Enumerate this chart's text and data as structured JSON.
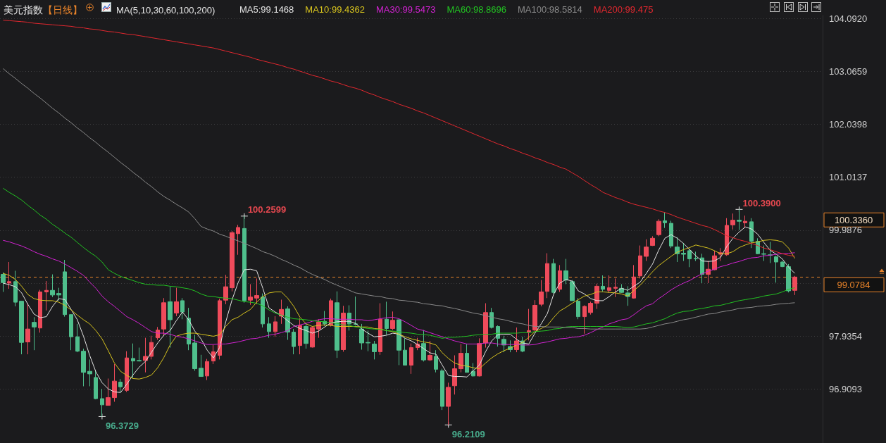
{
  "chart_data": {
    "type": "candlestick",
    "title": "美元指数【日线】",
    "subtitle": "MA(5,10,30,60,100,200)",
    "categories": [
      null,
      null,
      null,
      null,
      null,
      null,
      null,
      null,
      null,
      null,
      null,
      null,
      null,
      null,
      null,
      null,
      null,
      null,
      null,
      null,
      null,
      null,
      null,
      null,
      null,
      null,
      null,
      null,
      null,
      null,
      null,
      null,
      null,
      null,
      null,
      null,
      null,
      null,
      null,
      null,
      null,
      null,
      null,
      null,
      null,
      null,
      null,
      null,
      null,
      null,
      null,
      null,
      null,
      null,
      null,
      null,
      null,
      null,
      null,
      null,
      null,
      null,
      null,
      null,
      null,
      null,
      null,
      null,
      null,
      null,
      null,
      null,
      null,
      null,
      null,
      null,
      null,
      null,
      null,
      null,
      null,
      null,
      null,
      null,
      null,
      null,
      null,
      null,
      null,
      null,
      null,
      null,
      null,
      null,
      null,
      null,
      null,
      null,
      null,
      null,
      null,
      null,
      null,
      null,
      null,
      null,
      null,
      null,
      null,
      null,
      null,
      null,
      null,
      null,
      null,
      null,
      null,
      null,
      null,
      null,
      null,
      null,
      null,
      null,
      null,
      null,
      null,
      null,
      null
    ],
    "ohlc": [
      [
        99.13,
        99.17,
        98.79,
        98.97
      ],
      [
        98.96,
        99.37,
        98.85,
        98.99
      ],
      [
        98.99,
        99.2,
        98.51,
        98.59
      ],
      [
        98.61,
        98.61,
        97.58,
        97.81
      ],
      [
        97.82,
        98.57,
        97.58,
        98.07
      ],
      [
        98.2,
        98.3,
        97.66,
        98.11
      ],
      [
        98.09,
        98.83,
        98.0,
        98.79
      ],
      [
        98.79,
        99.0,
        98.43,
        98.82
      ],
      [
        98.82,
        99.13,
        98.69,
        98.73
      ],
      [
        98.76,
        98.87,
        98.62,
        98.73
      ],
      [
        99.18,
        99.41,
        98.31,
        98.35
      ],
      [
        98.35,
        98.35,
        97.66,
        97.92
      ],
      [
        97.92,
        98.17,
        97.62,
        97.64
      ],
      [
        97.64,
        97.69,
        96.96,
        97.23
      ],
      [
        97.25,
        97.48,
        96.96,
        97.2
      ],
      [
        97.13,
        97.28,
        96.71,
        96.72
      ],
      [
        96.72,
        96.91,
        96.3729,
        96.6
      ],
      [
        96.59,
        97.11,
        96.59,
        96.74
      ],
      [
        96.74,
        97.39,
        96.66,
        97.06
      ],
      [
        97.04,
        97.1,
        96.84,
        96.95
      ],
      [
        96.88,
        97.64,
        96.85,
        97.51
      ],
      [
        97.5,
        97.79,
        97.12,
        97.45
      ],
      [
        97.46,
        97.71,
        97.44,
        97.45
      ],
      [
        97.46,
        97.9,
        97.23,
        97.54
      ],
      [
        97.54,
        97.94,
        97.48,
        97.81
      ],
      [
        97.9,
        98.11,
        97.86,
        98.05
      ],
      [
        98.07,
        98.67,
        97.94,
        98.58
      ],
      [
        98.6,
        98.89,
        97.71,
        98.25
      ],
      [
        98.38,
        98.87,
        98.32,
        98.6
      ],
      [
        98.62,
        98.67,
        98.26,
        98.4
      ],
      [
        98.28,
        98.48,
        97.66,
        97.78
      ],
      [
        97.8,
        97.96,
        97.26,
        97.3
      ],
      [
        97.31,
        97.57,
        97.15,
        97.15
      ],
      [
        97.16,
        97.49,
        97.08,
        97.44
      ],
      [
        97.45,
        97.76,
        97.39,
        97.63
      ],
      [
        97.56,
        98.66,
        97.48,
        98.62
      ],
      [
        98.63,
        99.12,
        98.55,
        98.89
      ],
      [
        98.87,
        99.97,
        98.8,
        99.94
      ],
      [
        99.92,
        100.09,
        99.51,
        100.04
      ],
      [
        100.02,
        100.2599,
        98.58,
        98.62
      ],
      [
        98.63,
        98.94,
        98.54,
        98.69
      ],
      [
        98.67,
        99.05,
        98.55,
        98.72
      ],
      [
        98.69,
        98.76,
        98.1,
        98.17
      ],
      [
        98.17,
        98.3,
        97.9,
        98.02
      ],
      [
        98.02,
        98.32,
        97.92,
        98.21
      ],
      [
        98.32,
        98.64,
        98.17,
        98.45
      ],
      [
        98.46,
        98.51,
        97.86,
        98.01
      ],
      [
        98.01,
        98.07,
        97.58,
        97.73
      ],
      [
        97.75,
        98.28,
        97.58,
        98.14
      ],
      [
        98.12,
        98.17,
        97.69,
        97.79
      ],
      [
        97.72,
        98.12,
        97.71,
        98.1
      ],
      [
        98.07,
        98.26,
        97.9,
        98.21
      ],
      [
        98.22,
        98.42,
        98.13,
        98.17
      ],
      [
        98.15,
        98.66,
        98.12,
        98.62
      ],
      [
        98.58,
        98.8,
        97.51,
        97.66
      ],
      [
        97.67,
        98.52,
        97.63,
        98.38
      ],
      [
        98.38,
        98.53,
        98.04,
        98.17
      ],
      [
        98.17,
        98.7,
        98.14,
        98.16
      ],
      [
        98.07,
        98.17,
        97.67,
        97.8
      ],
      [
        97.81,
        98.04,
        97.64,
        97.8
      ],
      [
        97.78,
        97.84,
        97.48,
        97.63
      ],
      [
        97.63,
        98.57,
        97.57,
        98.26
      ],
      [
        98.26,
        98.6,
        97.96,
        98.08
      ],
      [
        98.08,
        98.41,
        98.05,
        98.24
      ],
      [
        98.25,
        98.27,
        97.37,
        97.66
      ],
      [
        97.66,
        97.89,
        97.37,
        97.37
      ],
      [
        97.37,
        97.79,
        97.2,
        97.71
      ],
      [
        97.71,
        97.9,
        97.66,
        97.78
      ],
      [
        97.79,
        98.05,
        97.44,
        97.47
      ],
      [
        97.47,
        97.84,
        97.45,
        97.56
      ],
      [
        97.54,
        97.66,
        97.23,
        97.29
      ],
      [
        97.26,
        97.3,
        96.5,
        96.57
      ],
      [
        96.57,
        97.03,
        96.2109,
        96.94
      ],
      [
        96.97,
        97.56,
        96.8,
        97.3
      ],
      [
        97.3,
        97.78,
        97.23,
        97.6
      ],
      [
        97.6,
        97.78,
        97.23,
        97.23
      ],
      [
        97.25,
        97.41,
        97.15,
        97.16
      ],
      [
        97.16,
        97.89,
        97.15,
        97.79
      ],
      [
        97.8,
        98.57,
        97.71,
        98.39
      ],
      [
        98.39,
        98.48,
        98.08,
        98.1
      ],
      [
        98.12,
        98.14,
        97.73,
        97.89
      ],
      [
        97.87,
        97.94,
        97.62,
        97.76
      ],
      [
        97.73,
        97.85,
        97.62,
        97.67
      ],
      [
        97.67,
        98.1,
        97.62,
        97.84
      ],
      [
        97.84,
        97.92,
        97.62,
        97.64
      ],
      [
        98.01,
        98.46,
        97.85,
        98.04
      ],
      [
        98.05,
        98.63,
        98.03,
        98.53
      ],
      [
        98.55,
        99.02,
        98.51,
        98.79
      ],
      [
        98.8,
        99.54,
        98.67,
        99.34
      ],
      [
        99.34,
        99.43,
        98.76,
        98.78
      ],
      [
        98.84,
        99.31,
        98.79,
        99.2
      ],
      [
        99.2,
        99.43,
        98.94,
        99.02
      ],
      [
        98.99,
        99.02,
        98.62,
        98.62
      ],
      [
        98.61,
        98.67,
        98.26,
        98.31
      ],
      [
        98.31,
        98.53,
        97.98,
        98.51
      ],
      [
        98.39,
        98.6,
        98.35,
        98.57
      ],
      [
        98.57,
        98.95,
        98.46,
        98.9
      ],
      [
        98.9,
        99.11,
        98.8,
        98.84
      ],
      [
        98.82,
        99.11,
        98.77,
        98.87
      ],
      [
        98.86,
        99.05,
        98.69,
        98.88
      ],
      [
        98.86,
        98.94,
        98.77,
        98.78
      ],
      [
        98.77,
        98.9,
        98.52,
        98.7
      ],
      [
        98.67,
        99.31,
        98.66,
        99.08
      ],
      [
        99.1,
        99.69,
        99.05,
        99.49
      ],
      [
        99.48,
        99.81,
        99.39,
        99.66
      ],
      [
        99.69,
        99.87,
        99.68,
        99.83
      ],
      [
        99.9,
        100.2,
        99.87,
        100.16
      ],
      [
        100.17,
        100.34,
        100.03,
        100.13
      ],
      [
        100.12,
        100.17,
        99.64,
        99.68
      ],
      [
        99.66,
        99.85,
        99.37,
        99.53
      ],
      [
        99.54,
        99.74,
        99.39,
        99.52
      ],
      [
        99.59,
        99.62,
        99.27,
        99.43
      ],
      [
        99.44,
        99.57,
        99.39,
        99.43
      ],
      [
        99.45,
        99.53,
        98.96,
        99.13
      ],
      [
        99.13,
        99.39,
        98.96,
        99.23
      ],
      [
        99.22,
        99.59,
        99.21,
        99.49
      ],
      [
        99.52,
        99.64,
        99.39,
        99.55
      ],
      [
        99.51,
        100.22,
        99.49,
        100.08
      ],
      [
        100.09,
        100.31,
        100.0,
        100.18
      ],
      [
        100.18,
        100.39,
        99.99,
        100.16
      ],
      [
        100.13,
        100.27,
        100.03,
        100.16
      ],
      [
        100.15,
        100.22,
        99.64,
        99.77
      ],
      [
        99.77,
        99.83,
        99.52,
        99.53
      ],
      [
        99.53,
        99.69,
        99.39,
        99.52
      ],
      [
        99.51,
        99.76,
        99.35,
        99.5
      ],
      [
        99.47,
        99.49,
        98.97,
        99.37
      ],
      [
        99.37,
        99.39,
        99.27,
        99.28
      ],
      [
        99.28,
        99.33,
        98.78,
        98.81
      ],
      [
        98.82,
        99.1,
        98.73,
        99.0784
      ]
    ],
    "colors": [
      "#4fbf8c",
      "#ef4b5b",
      "#4fbf8c",
      "#4fbf8c",
      "#ef4b5b",
      "#4fbf8c",
      "#ef4b5b",
      "#ef4b5b",
      "#4fbf8c",
      "#4fbf8c",
      "#4fbf8c",
      "#4fbf8c",
      "#4fbf8c",
      "#4fbf8c",
      "#4fbf8c",
      "#4fbf8c",
      "#4fbf8c",
      "#ef4b5b",
      "#ef4b5b",
      "#4fbf8c",
      "#ef4b5b",
      "#4fbf8c",
      "#4fbf8c",
      "#ef4b5b",
      "#ef4b5b",
      "#ef4b5b",
      "#ef4b5b",
      "#4fbf8c",
      "#ef4b5b",
      "#4fbf8c",
      "#4fbf8c",
      "#4fbf8c",
      "#4fbf8c",
      "#ef4b5b",
      "#ef4b5b",
      "#ef4b5b",
      "#ef4b5b",
      "#ef4b5b",
      "#ef4b5b",
      "#4fbf8c",
      "#ef4b5b",
      "#ef4b5b",
      "#4fbf8c",
      "#4fbf8c",
      "#ef4b5b",
      "#ef4b5b",
      "#4fbf8c",
      "#4fbf8c",
      "#ef4b5b",
      "#4fbf8c",
      "#ef4b5b",
      "#ef4b5b",
      "#4fbf8c",
      "#ef4b5b",
      "#4fbf8c",
      "#ef4b5b",
      "#4fbf8c",
      "#4fbf8c",
      "#4fbf8c",
      "#4fbf8c",
      "#4fbf8c",
      "#ef4b5b",
      "#4fbf8c",
      "#ef4b5b",
      "#4fbf8c",
      "#4fbf8c",
      "#ef4b5b",
      "#ef4b5b",
      "#4fbf8c",
      "#ef4b5b",
      "#4fbf8c",
      "#4fbf8c",
      "#ef4b5b",
      "#ef4b5b",
      "#ef4b5b",
      "#4fbf8c",
      "#4fbf8c",
      "#ef4b5b",
      "#ef4b5b",
      "#4fbf8c",
      "#4fbf8c",
      "#4fbf8c",
      "#4fbf8c",
      "#ef4b5b",
      "#4fbf8c",
      "#ef4b5b",
      "#ef4b5b",
      "#ef4b5b",
      "#ef4b5b",
      "#4fbf8c",
      "#ef4b5b",
      "#4fbf8c",
      "#4fbf8c",
      "#4fbf8c",
      "#ef4b5b",
      "#ef4b5b",
      "#ef4b5b",
      "#4fbf8c",
      "#ef4b5b",
      "#ef4b5b",
      "#4fbf8c",
      "#4fbf8c",
      "#ef4b5b",
      "#ef4b5b",
      "#ef4b5b",
      "#ef4b5b",
      "#ef4b5b",
      "#4fbf8c",
      "#4fbf8c",
      "#4fbf8c",
      "#4fbf8c",
      "#4fbf8c",
      "#4fbf8c",
      "#4fbf8c",
      "#ef4b5b",
      "#ef4b5b",
      "#ef4b5b",
      "#ef4b5b",
      "#ef4b5b",
      "#4fbf8c",
      "#ef4b5b",
      "#4fbf8c",
      "#4fbf8c",
      "#4fbf8c",
      "#4fbf8c",
      "#4fbf8c",
      "#4fbf8c",
      "#4fbf8c",
      "#ef4b5b"
    ],
    "series": [
      {
        "name": "MA5:99.1468",
        "type": "line",
        "color": "#e4e4e4",
        "values": [
          98.96,
          98.93,
          98.89,
          98.77,
          98.55,
          98.36,
          98.29,
          98.31,
          98.51,
          98.66,
          98.64,
          98.45,
          98.25,
          97.93,
          97.56,
          97.24,
          97.03,
          96.91,
          96.85,
          96.84,
          97.0,
          97.18,
          97.33,
          97.44,
          97.62,
          97.8,
          97.95,
          98.04,
          98.23,
          98.4,
          98.25,
          98.03,
          97.88,
          97.66,
          97.51,
          97.71,
          98.21,
          98.63,
          98.97,
          99.22,
          99.23,
          99.2,
          98.86,
          98.48,
          98.4,
          98.33,
          98.23,
          98.14,
          98.08,
          98.04,
          97.99,
          98.03,
          98.11,
          98.19,
          98.21,
          98.22,
          98.22,
          98.18,
          98.07,
          97.99,
          97.92,
          97.93,
          97.95,
          97.99,
          97.97,
          97.89,
          97.84,
          97.77,
          97.69,
          97.61,
          97.58,
          97.37,
          97.17,
          97.15,
          97.15,
          97.14,
          97.26,
          97.37,
          97.63,
          97.84,
          97.96,
          97.97,
          97.97,
          97.87,
          97.8,
          97.78,
          97.99,
          98.17,
          98.37,
          98.74,
          98.96,
          99.03,
          99.0,
          98.81,
          98.75,
          98.66,
          98.62,
          98.62,
          98.7,
          98.79,
          98.86,
          98.82,
          98.9,
          98.98,
          99.15,
          99.33,
          99.6,
          99.83,
          99.9,
          99.83,
          99.73,
          99.61,
          99.49,
          99.39,
          99.38,
          99.39,
          99.46,
          99.67,
          99.83,
          99.95,
          100.05,
          100.01,
          99.91,
          99.75,
          99.6,
          99.52,
          99.43,
          99.27,
          99.15
        ]
      },
      {
        "name": "MA10:99.4362",
        "type": "line",
        "color": "#d8c41e",
        "values": [
          99.15,
          99.11,
          99.03,
          98.9,
          98.74,
          98.66,
          98.63,
          98.62,
          98.62,
          98.59,
          98.53,
          98.44,
          98.34,
          98.25,
          98.17,
          98.04,
          97.88,
          97.65,
          97.41,
          97.25,
          97.17,
          97.11,
          97.1,
          97.13,
          97.18,
          97.32,
          97.52,
          97.76,
          97.93,
          97.97,
          97.99,
          97.99,
          97.97,
          97.95,
          97.93,
          97.96,
          98.12,
          98.25,
          98.3,
          98.38,
          98.45,
          98.59,
          98.7,
          98.77,
          98.79,
          98.79,
          98.67,
          98.51,
          98.3,
          98.17,
          98.12,
          98.14,
          98.15,
          98.14,
          98.12,
          98.12,
          98.12,
          98.12,
          98.11,
          98.11,
          98.08,
          98.07,
          98.04,
          98.02,
          97.97,
          97.92,
          97.88,
          97.85,
          97.82,
          97.8,
          97.76,
          97.61,
          97.5,
          97.41,
          97.37,
          97.35,
          97.32,
          97.3,
          97.41,
          97.51,
          97.59,
          97.65,
          97.7,
          97.76,
          97.81,
          97.91,
          98.02,
          98.08,
          98.14,
          98.29,
          98.42,
          98.49,
          98.57,
          98.64,
          98.71,
          98.74,
          98.79,
          98.79,
          98.78,
          98.77,
          98.75,
          98.71,
          98.82,
          98.92,
          99.05,
          99.18,
          99.3,
          99.39,
          99.48,
          99.56,
          99.61,
          99.65,
          99.7,
          99.67,
          99.64,
          99.59,
          99.53,
          99.53,
          99.57,
          99.65,
          99.7,
          99.74,
          99.76,
          99.79,
          99.8,
          99.79,
          99.76,
          99.64,
          99.44
        ]
      },
      {
        "name": "MA30:99.5473",
        "type": "line",
        "color": "#d322d3",
        "values": [
          99.79,
          99.76,
          99.72,
          99.68,
          99.63,
          99.57,
          99.52,
          99.48,
          99.43,
          99.39,
          99.33,
          99.26,
          99.19,
          99.11,
          98.98,
          98.86,
          98.71,
          98.6,
          98.51,
          98.41,
          98.31,
          98.25,
          98.18,
          98.1,
          98.02,
          97.99,
          97.99,
          97.97,
          97.93,
          97.91,
          97.88,
          97.84,
          97.8,
          97.77,
          97.77,
          97.78,
          97.78,
          97.8,
          97.82,
          97.85,
          97.88,
          97.89,
          97.92,
          97.95,
          97.97,
          98.0,
          98.04,
          98.12,
          98.15,
          98.18,
          98.22,
          98.25,
          98.27,
          98.27,
          98.26,
          98.26,
          98.26,
          98.25,
          98.25,
          98.23,
          98.25,
          98.27,
          98.29,
          98.3,
          98.27,
          98.21,
          98.14,
          98.07,
          98.04,
          98.0,
          97.96,
          97.92,
          97.88,
          97.84,
          97.81,
          97.78,
          97.78,
          97.78,
          97.8,
          97.8,
          97.78,
          97.77,
          97.77,
          97.77,
          97.76,
          97.76,
          97.77,
          97.8,
          97.82,
          97.85,
          97.88,
          97.89,
          97.91,
          97.92,
          97.95,
          98.0,
          98.06,
          98.11,
          98.17,
          98.21,
          98.25,
          98.27,
          98.35,
          98.44,
          98.52,
          98.56,
          98.66,
          98.74,
          98.83,
          98.9,
          98.96,
          99.01,
          99.08,
          99.14,
          99.19,
          99.23,
          99.28,
          99.31,
          99.35,
          99.38,
          99.42,
          99.45,
          99.46,
          99.49,
          99.5,
          99.52,
          99.53,
          99.54,
          99.55
        ]
      },
      {
        "name": "MA60:98.8696",
        "type": "line",
        "color": "#22c322",
        "values": [
          100.8,
          100.72,
          100.65,
          100.57,
          100.47,
          100.38,
          100.28,
          100.2,
          100.1,
          100.02,
          99.93,
          99.85,
          99.75,
          99.65,
          99.56,
          99.48,
          99.37,
          99.22,
          99.15,
          99.09,
          99.05,
          99.01,
          98.97,
          98.94,
          98.93,
          98.92,
          98.92,
          98.9,
          98.89,
          98.87,
          98.85,
          98.81,
          98.75,
          98.71,
          98.7,
          98.68,
          98.67,
          98.66,
          98.63,
          98.6,
          98.59,
          98.57,
          98.52,
          98.44,
          98.38,
          98.34,
          98.3,
          98.27,
          98.26,
          98.25,
          98.23,
          98.22,
          98.21,
          98.19,
          98.18,
          98.15,
          98.14,
          98.11,
          98.1,
          98.08,
          98.07,
          98.06,
          98.04,
          98.03,
          98.02,
          98.0,
          97.99,
          97.97,
          97.96,
          97.95,
          97.92,
          97.89,
          97.91,
          97.91,
          97.92,
          97.93,
          97.95,
          97.96,
          97.97,
          97.97,
          97.99,
          97.99,
          97.99,
          97.99,
          98.0,
          98.0,
          98.02,
          98.03,
          98.04,
          98.07,
          98.08,
          98.11,
          98.12,
          98.12,
          98.12,
          98.12,
          98.12,
          98.12,
          98.12,
          98.12,
          98.11,
          98.1,
          98.11,
          98.14,
          98.17,
          98.19,
          98.23,
          98.27,
          98.33,
          98.38,
          98.41,
          98.42,
          98.45,
          98.47,
          98.49,
          98.52,
          98.53,
          98.56,
          98.59,
          98.62,
          98.64,
          98.66,
          98.68,
          98.71,
          98.73,
          98.75,
          98.79,
          98.84,
          98.87
        ]
      },
      {
        "name": "MA100:98.5814",
        "type": "line",
        "color": "#8a8a8a",
        "values": [
          103.12,
          103.02,
          102.93,
          102.83,
          102.74,
          102.64,
          102.55,
          102.45,
          102.35,
          102.26,
          102.16,
          102.07,
          101.97,
          101.88,
          101.78,
          101.69,
          101.59,
          101.5,
          101.4,
          101.3,
          101.21,
          101.11,
          101.02,
          100.92,
          100.83,
          100.73,
          100.64,
          100.57,
          100.49,
          100.42,
          100.34,
          100.21,
          100.06,
          100.01,
          99.97,
          99.91,
          99.87,
          99.82,
          99.78,
          99.73,
          99.68,
          99.63,
          99.57,
          99.53,
          99.48,
          99.42,
          99.37,
          99.31,
          99.26,
          99.19,
          99.13,
          99.08,
          99.03,
          98.97,
          98.92,
          98.87,
          98.82,
          98.77,
          98.75,
          98.73,
          98.71,
          98.7,
          98.67,
          98.66,
          98.63,
          98.62,
          98.6,
          98.59,
          98.56,
          98.55,
          98.53,
          98.52,
          98.49,
          98.47,
          98.44,
          98.41,
          98.38,
          98.36,
          98.33,
          98.3,
          98.27,
          98.25,
          98.22,
          98.19,
          98.17,
          98.14,
          98.12,
          98.12,
          98.11,
          98.11,
          98.11,
          98.1,
          98.1,
          98.08,
          98.08,
          98.07,
          98.07,
          98.07,
          98.07,
          98.07,
          98.07,
          98.07,
          98.07,
          98.07,
          98.08,
          98.11,
          98.14,
          98.17,
          98.19,
          98.22,
          98.25,
          98.27,
          98.3,
          98.33,
          98.36,
          98.37,
          98.4,
          98.42,
          98.44,
          98.47,
          98.48,
          98.49,
          98.51,
          98.52,
          98.53,
          98.55,
          98.56,
          98.57,
          98.58
        ]
      },
      {
        "name": "MA200:99.475",
        "type": "line",
        "color": "#e3282f",
        "values": [
          104.06,
          104.05,
          104.04,
          104.03,
          104.02,
          104.0,
          103.99,
          103.98,
          103.97,
          103.96,
          103.95,
          103.94,
          103.92,
          103.91,
          103.89,
          103.88,
          103.86,
          103.84,
          103.83,
          103.81,
          103.79,
          103.78,
          103.76,
          103.74,
          103.72,
          103.7,
          103.68,
          103.66,
          103.64,
          103.62,
          103.6,
          103.58,
          103.56,
          103.54,
          103.52,
          103.49,
          103.46,
          103.43,
          103.4,
          103.37,
          103.34,
          103.3,
          103.27,
          103.24,
          103.21,
          103.18,
          103.14,
          103.11,
          103.07,
          103.03,
          102.99,
          102.96,
          102.92,
          102.88,
          102.85,
          102.81,
          102.77,
          102.74,
          102.7,
          102.65,
          102.61,
          102.56,
          102.52,
          102.48,
          102.43,
          102.39,
          102.35,
          102.3,
          102.26,
          102.21,
          102.16,
          102.11,
          102.06,
          102.01,
          101.96,
          101.91,
          101.86,
          101.81,
          101.76,
          101.71,
          101.66,
          101.62,
          101.57,
          101.53,
          101.48,
          101.44,
          101.39,
          101.35,
          101.3,
          101.26,
          101.21,
          101.17,
          101.1,
          101.03,
          100.95,
          100.87,
          100.8,
          100.72,
          100.67,
          100.62,
          100.58,
          100.53,
          100.49,
          100.46,
          100.43,
          100.4,
          100.36,
          100.33,
          100.29,
          100.24,
          100.2,
          100.16,
          100.12,
          100.08,
          100.05,
          100.0,
          99.94,
          99.88,
          99.84,
          99.8,
          99.77,
          99.73,
          99.69,
          99.64,
          99.61,
          99.57,
          99.53,
          99.5,
          99.48
        ]
      }
    ],
    "ylim": [
      95.86,
      104.15
    ],
    "yticks": [
      {
        "value": 96.9093,
        "label": "96.9093"
      },
      {
        "value": 97.9354,
        "label": "97.9354"
      },
      {
        "value": 98.9615,
        "label": null
      },
      {
        "value": 99.9876,
        "label": "99.9876"
      },
      {
        "value": 101.0137,
        "label": "101.0137"
      },
      {
        "value": 102.0398,
        "label": "102.0398"
      },
      {
        "value": 103.0659,
        "label": "103.0659"
      },
      {
        "value": 104.092,
        "label": "104.0920"
      }
    ],
    "grid": "y",
    "legend": "top",
    "line_style": "solid",
    "ref_lines": [
      {
        "axis": "y",
        "value": 99.0784,
        "label": "99.0784",
        "color": "#e8832a",
        "line_style": "dashed"
      }
    ],
    "annotations": [
      "100.2599",
      "100.3900",
      "96.3729",
      "96.2109",
      "100.3360"
    ]
  }
}
